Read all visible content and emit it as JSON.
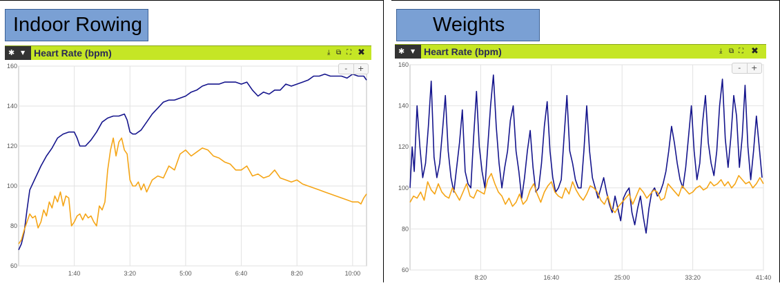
{
  "sections": [
    {
      "title": "Indoor Rowing"
    },
    {
      "title": "Weights"
    }
  ],
  "panels": [
    {
      "title": "Heart Rate (bpm)",
      "icons": [
        "gear-icon",
        "caret-down-icon",
        "download-icon",
        "popout-icon",
        "expand-icon",
        "close-icon"
      ],
      "zoom": {
        "minus": "-",
        "plus": "+"
      }
    },
    {
      "title": "Heart Rate (bpm)",
      "icons": [
        "gear-icon",
        "caret-down-icon",
        "download-icon",
        "popout-icon",
        "expand-icon",
        "close-icon"
      ],
      "zoom": {
        "minus": "-",
        "plus": "+"
      }
    }
  ],
  "colors": {
    "series_navy": "#14148c",
    "series_orange": "#f5a516",
    "header_green": "#c5e625",
    "title_box": "#7aa0d4"
  },
  "chart_data": [
    {
      "type": "line",
      "title": "Heart Rate (bpm)",
      "x_unit": "seconds",
      "xlim": [
        0,
        625
      ],
      "ylim": [
        60,
        160
      ],
      "x_ticks": [
        {
          "v": 100,
          "label": "1:40"
        },
        {
          "v": 200,
          "label": "3:20"
        },
        {
          "v": 300,
          "label": "5:00"
        },
        {
          "v": 400,
          "label": "6:40"
        },
        {
          "v": 500,
          "label": "8:20"
        },
        {
          "v": 600,
          "label": "10:00"
        }
      ],
      "y_ticks": [
        {
          "v": 60,
          "label": "60"
        },
        {
          "v": 80,
          "label": "80"
        },
        {
          "v": 100,
          "label": "100"
        },
        {
          "v": 120,
          "label": "120"
        },
        {
          "v": 140,
          "label": "140"
        },
        {
          "v": 160,
          "label": "160"
        }
      ],
      "grid": true,
      "series": [
        {
          "color": "#14148c",
          "x": [
            0,
            5,
            10,
            15,
            20,
            30,
            40,
            50,
            60,
            70,
            80,
            90,
            100,
            105,
            110,
            120,
            130,
            140,
            150,
            160,
            170,
            180,
            190,
            195,
            200,
            205,
            210,
            220,
            230,
            240,
            250,
            260,
            270,
            280,
            290,
            300,
            310,
            320,
            330,
            340,
            350,
            360,
            370,
            380,
            390,
            400,
            410,
            420,
            430,
            440,
            450,
            460,
            470,
            480,
            490,
            500,
            510,
            520,
            530,
            540,
            550,
            560,
            570,
            580,
            590,
            600,
            610,
            615,
            620,
            625
          ],
          "y": [
            68,
            71,
            77,
            88,
            98,
            104,
            110,
            115,
            119,
            124,
            126,
            127,
            127,
            124,
            120,
            120,
            123,
            127,
            132,
            134,
            135,
            135,
            136,
            133,
            127,
            126,
            126,
            128,
            132,
            136,
            139,
            142,
            143,
            143,
            144,
            145,
            147,
            148,
            150,
            151,
            151,
            151,
            152,
            152,
            152,
            151,
            152,
            148,
            145,
            147,
            146,
            148,
            148,
            151,
            150,
            151,
            152,
            153,
            155,
            155,
            156,
            155,
            155,
            155,
            154,
            156,
            155,
            155,
            155,
            153
          ]
        },
        {
          "color": "#f5a516",
          "x": [
            0,
            5,
            10,
            15,
            20,
            25,
            30,
            35,
            40,
            45,
            50,
            55,
            60,
            65,
            70,
            75,
            80,
            85,
            90,
            95,
            100,
            105,
            110,
            115,
            120,
            125,
            130,
            135,
            140,
            145,
            150,
            155,
            160,
            165,
            170,
            175,
            180,
            185,
            190,
            195,
            200,
            205,
            210,
            215,
            220,
            225,
            230,
            240,
            250,
            260,
            270,
            280,
            290,
            300,
            310,
            320,
            330,
            340,
            350,
            360,
            370,
            380,
            390,
            400,
            410,
            420,
            430,
            440,
            450,
            460,
            470,
            480,
            490,
            500,
            510,
            520,
            530,
            540,
            550,
            560,
            570,
            580,
            590,
            600,
            610,
            615,
            620,
            625
          ],
          "y": [
            71,
            73,
            78,
            82,
            86,
            84,
            85,
            79,
            82,
            88,
            85,
            92,
            89,
            95,
            92,
            97,
            90,
            95,
            94,
            80,
            82,
            85,
            86,
            83,
            86,
            84,
            85,
            82,
            80,
            90,
            88,
            92,
            108,
            118,
            124,
            115,
            122,
            124,
            118,
            116,
            103,
            100,
            100,
            102,
            98,
            101,
            97,
            103,
            105,
            104,
            110,
            108,
            116,
            118,
            115,
            117,
            119,
            118,
            115,
            114,
            112,
            111,
            108,
            108,
            110,
            105,
            106,
            104,
            105,
            108,
            104,
            103,
            102,
            103,
            101,
            100,
            99,
            98,
            97,
            96,
            95,
            94,
            93,
            92,
            92,
            91,
            94,
            96
          ]
        }
      ]
    },
    {
      "type": "line",
      "title": "Heart Rate (bpm)",
      "x_unit": "seconds",
      "xlim": [
        0,
        2500
      ],
      "ylim": [
        60,
        160
      ],
      "x_ticks": [
        {
          "v": 500,
          "label": "8:20"
        },
        {
          "v": 1000,
          "label": "16:40"
        },
        {
          "v": 1500,
          "label": "25:00"
        },
        {
          "v": 2000,
          "label": "33:20"
        },
        {
          "v": 2500,
          "label": "41:40"
        }
      ],
      "y_ticks": [
        {
          "v": 60,
          "label": "60"
        },
        {
          "v": 80,
          "label": "80"
        },
        {
          "v": 100,
          "label": "100"
        },
        {
          "v": 120,
          "label": "120"
        },
        {
          "v": 140,
          "label": "140"
        },
        {
          "v": 160,
          "label": "160"
        }
      ],
      "grid": true,
      "series": [
        {
          "color": "#14148c",
          "x": [
            0,
            15,
            30,
            50,
            70,
            90,
            110,
            130,
            150,
            170,
            190,
            210,
            230,
            250,
            270,
            290,
            310,
            330,
            350,
            370,
            390,
            410,
            430,
            450,
            470,
            490,
            510,
            530,
            550,
            570,
            590,
            610,
            630,
            650,
            670,
            690,
            710,
            730,
            750,
            770,
            790,
            810,
            830,
            850,
            870,
            890,
            910,
            930,
            950,
            970,
            990,
            1010,
            1030,
            1050,
            1070,
            1090,
            1110,
            1130,
            1150,
            1170,
            1190,
            1210,
            1230,
            1250,
            1270,
            1290,
            1310,
            1330,
            1350,
            1370,
            1390,
            1410,
            1430,
            1450,
            1470,
            1490,
            1510,
            1530,
            1550,
            1570,
            1590,
            1610,
            1630,
            1650,
            1670,
            1690,
            1710,
            1730,
            1750,
            1770,
            1790,
            1810,
            1830,
            1850,
            1870,
            1890,
            1910,
            1930,
            1950,
            1970,
            1990,
            2010,
            2030,
            2050,
            2070,
            2090,
            2110,
            2130,
            2150,
            2170,
            2190,
            2210,
            2230,
            2250,
            2270,
            2290,
            2310,
            2330,
            2350,
            2370,
            2390,
            2410,
            2430,
            2450,
            2470,
            2490
          ],
          "y": [
            100,
            120,
            108,
            140,
            120,
            105,
            112,
            130,
            152,
            115,
            105,
            112,
            128,
            145,
            118,
            105,
            98,
            110,
            122,
            138,
            108,
            102,
            100,
            125,
            147,
            120,
            108,
            100,
            120,
            140,
            155,
            130,
            112,
            100,
            110,
            118,
            133,
            140,
            118,
            108,
            95,
            105,
            118,
            128,
            110,
            98,
            100,
            112,
            130,
            142,
            118,
            105,
            98,
            100,
            104,
            125,
            145,
            118,
            112,
            104,
            100,
            100,
            118,
            140,
            118,
            105,
            100,
            95,
            100,
            105,
            98,
            92,
            88,
            96,
            90,
            84,
            95,
            98,
            100,
            88,
            82,
            90,
            96,
            86,
            78,
            90,
            98,
            100,
            96,
            98,
            102,
            108,
            118,
            130,
            122,
            112,
            104,
            100,
            110,
            125,
            140,
            118,
            104,
            112,
            132,
            145,
            122,
            112,
            106,
            118,
            140,
            153,
            124,
            110,
            125,
            145,
            135,
            110,
            125,
            150,
            120,
            104,
            118,
            135,
            120,
            105
          ]
        },
        {
          "color": "#f5a516",
          "x": [
            0,
            25,
            50,
            75,
            100,
            125,
            150,
            175,
            200,
            225,
            250,
            275,
            300,
            325,
            350,
            375,
            400,
            425,
            450,
            475,
            500,
            525,
            550,
            575,
            600,
            625,
            650,
            675,
            700,
            725,
            750,
            775,
            800,
            825,
            850,
            875,
            900,
            925,
            950,
            975,
            1000,
            1025,
            1050,
            1075,
            1100,
            1125,
            1150,
            1175,
            1200,
            1225,
            1250,
            1275,
            1300,
            1325,
            1350,
            1375,
            1400,
            1425,
            1450,
            1475,
            1500,
            1525,
            1550,
            1575,
            1600,
            1625,
            1650,
            1675,
            1700,
            1725,
            1750,
            1775,
            1800,
            1825,
            1850,
            1875,
            1900,
            1925,
            1950,
            1975,
            2000,
            2025,
            2050,
            2075,
            2100,
            2125,
            2150,
            2175,
            2200,
            2225,
            2250,
            2275,
            2300,
            2325,
            2350,
            2375,
            2400,
            2425,
            2450,
            2475,
            2500
          ],
          "y": [
            93,
            96,
            95,
            98,
            94,
            103,
            99,
            97,
            102,
            98,
            96,
            95,
            100,
            97,
            94,
            98,
            102,
            96,
            95,
            99,
            98,
            97,
            104,
            107,
            102,
            98,
            96,
            92,
            95,
            91,
            93,
            97,
            92,
            94,
            99,
            102,
            97,
            93,
            98,
            101,
            103,
            98,
            96,
            95,
            100,
            97,
            103,
            99,
            96,
            94,
            97,
            101,
            100,
            98,
            94,
            92,
            96,
            90,
            88,
            91,
            93,
            95,
            97,
            92,
            96,
            100,
            98,
            95,
            97,
            99,
            98,
            94,
            95,
            102,
            100,
            98,
            96,
            101,
            99,
            97,
            98,
            100,
            101,
            99,
            100,
            103,
            101,
            102,
            104,
            101,
            103,
            100,
            102,
            106,
            104,
            102,
            103,
            100,
            102,
            105,
            102
          ]
        }
      ]
    }
  ]
}
